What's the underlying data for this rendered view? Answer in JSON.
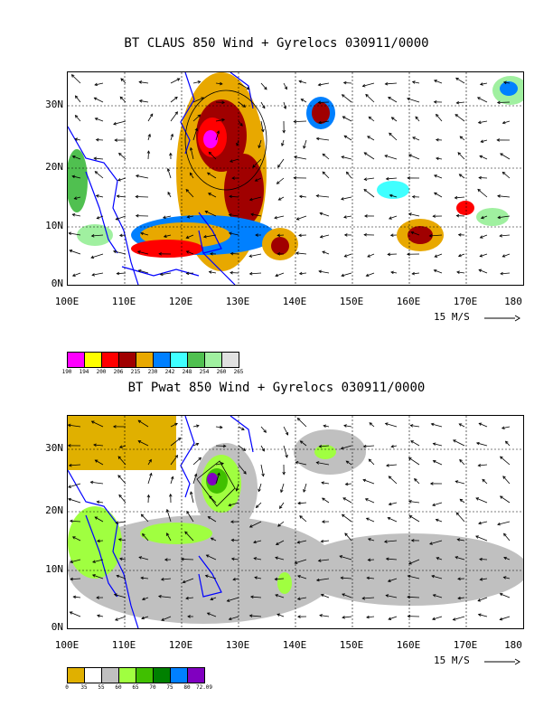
{
  "panels": [
    {
      "title": "BT CLAUS 850 Wind + Gyrelocs 030911/0000",
      "y_labels": [
        "30N",
        "20N",
        "10N",
        "0N"
      ],
      "x_labels": [
        "100E",
        "110E",
        "120E",
        "130E",
        "140E",
        "150E",
        "160E",
        "170E",
        "180"
      ],
      "ref_vector": "15 M/S",
      "colorbar_colors": [
        "#ff00ff",
        "#ffff00",
        "#ff0000",
        "#a00000",
        "#e8a800",
        "#0080ff",
        "#40ffff",
        "#50c050",
        "#a0f0a0",
        "#e0e0e0"
      ],
      "colorbar_labels": [
        "190",
        "194",
        "200",
        "206",
        "215",
        "230",
        "242",
        "248",
        "254",
        "260",
        "265"
      ]
    },
    {
      "title": "BT Pwat 850 Wind + Gyrelocs 030911/0000",
      "y_labels": [
        "30N",
        "20N",
        "10N",
        "0N"
      ],
      "x_labels": [
        "100E",
        "110E",
        "120E",
        "130E",
        "140E",
        "150E",
        "160E",
        "170E",
        "180"
      ],
      "ref_vector": "15 M/S",
      "colorbar_colors": [
        "#e0b000",
        "#ffffff",
        "#c0c0c0",
        "#a0ff40",
        "#40c000",
        "#008000",
        "#0080ff",
        "#8000c0"
      ],
      "colorbar_labels": [
        "0",
        "35",
        "55",
        "60",
        "65",
        "70",
        "75",
        "80",
        "72.09"
      ]
    }
  ]
}
